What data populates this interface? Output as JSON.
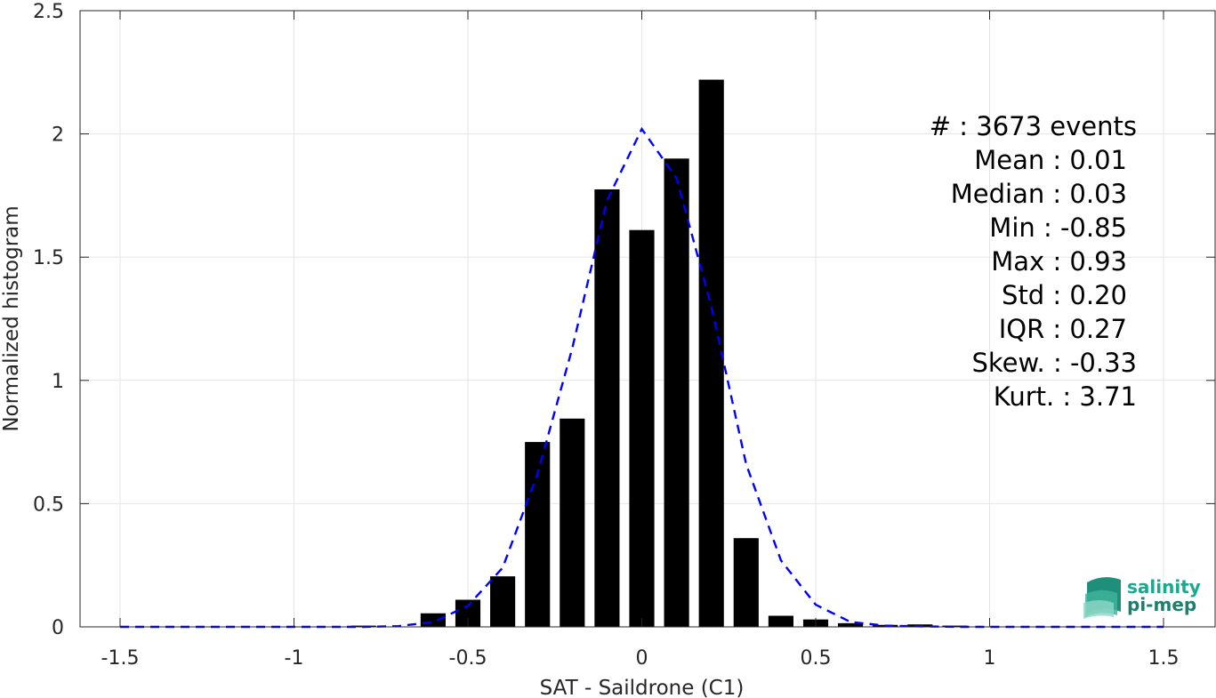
{
  "chart_data": {
    "type": "bar",
    "xlabel": "SAT - Saildrone (C1)",
    "ylabel": "Normalized histogram",
    "xlim": [
      -1.5,
      1.5
    ],
    "ylim": [
      0,
      2.5
    ],
    "xticks": [
      -1.5,
      -1,
      -0.5,
      0,
      0.5,
      1,
      1.5
    ],
    "xtick_labels": [
      "-1.5",
      "-1",
      "-0.5",
      "0",
      "0.5",
      "1",
      "1.5"
    ],
    "yticks": [
      0,
      0.5,
      1,
      1.5,
      2,
      2.5
    ],
    "ytick_labels": [
      "0",
      "0.5",
      "1",
      "1.5",
      "2",
      "2.5"
    ],
    "grid": true,
    "histogram": {
      "bin_centers": [
        -1.5,
        -1.4,
        -1.3,
        -1.2,
        -1.1,
        -1.0,
        -0.9,
        -0.8,
        -0.7,
        -0.6,
        -0.5,
        -0.4,
        -0.3,
        -0.2,
        -0.1,
        0.0,
        0.1,
        0.2,
        0.3,
        0.4,
        0.5,
        0.6,
        0.7,
        0.8,
        0.9,
        1.0,
        1.1,
        1.2,
        1.3,
        1.4,
        1.5
      ],
      "values": [
        0,
        0,
        0,
        0,
        0,
        0,
        0,
        0.005,
        0,
        0.055,
        0.11,
        0.205,
        0.75,
        0.845,
        1.775,
        1.61,
        1.9,
        2.22,
        0.36,
        0.045,
        0.03,
        0.015,
        0.008,
        0.01,
        0.005,
        0,
        0,
        0,
        0,
        0,
        0
      ],
      "color": "#000000"
    },
    "fit_curve": {
      "x": [
        -1.5,
        -1.4,
        -1.3,
        -1.2,
        -1.1,
        -1.0,
        -0.9,
        -0.8,
        -0.7,
        -0.6,
        -0.5,
        -0.4,
        -0.3,
        -0.2,
        -0.1,
        0.0,
        0.1,
        0.2,
        0.3,
        0.4,
        0.5,
        0.6,
        0.7,
        0.8,
        0.9,
        1.0,
        1.1,
        1.2,
        1.3,
        1.4,
        1.5
      ],
      "y": [
        0,
        0,
        0,
        0,
        0,
        0,
        0,
        0,
        0.003,
        0.02,
        0.085,
        0.24,
        0.62,
        1.13,
        1.73,
        2.02,
        1.82,
        1.3,
        0.66,
        0.27,
        0.09,
        0.02,
        0.005,
        0.002,
        0,
        0,
        0,
        0,
        0,
        0,
        0
      ],
      "color": "#0000ff",
      "style": "dashed"
    },
    "stats": [
      {
        "label": "#  : 3673 events"
      },
      {
        "label": "Mean : 0.01"
      },
      {
        "label": "Median : 0.03"
      },
      {
        "label": "Min : -0.85"
      },
      {
        "label": "Max : 0.93"
      },
      {
        "label": "Std : 0.20"
      },
      {
        "label": "IQR : 0.27"
      },
      {
        "label": "Skew. : -0.33"
      },
      {
        "label": "Kurt. : 3.71"
      }
    ]
  },
  "logo": {
    "line1": "salinity",
    "line2": "pi-mep",
    "color": "#1aa88f"
  }
}
